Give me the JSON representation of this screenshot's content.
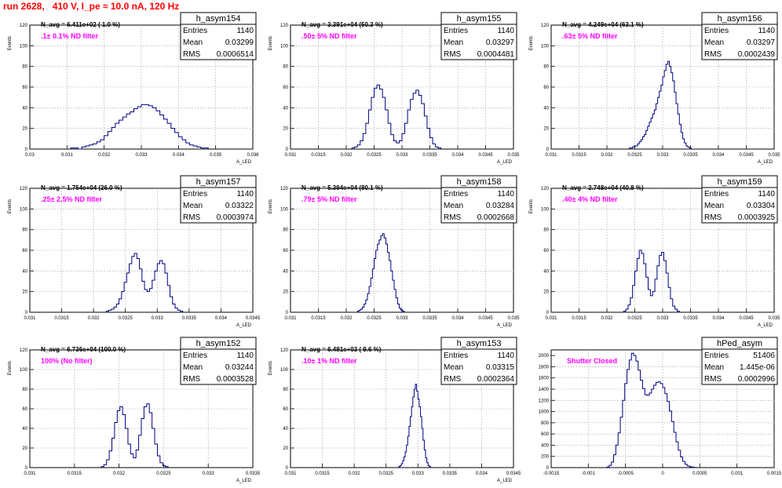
{
  "canvas_title": "run 2628,   410 V, I_pe ≈ 10.0 nA, 120 Hz",
  "colors": {
    "title": "#ff0000",
    "filter_text": "#ff00ff",
    "histogram_line": "#000080",
    "grid": "#9a9a9a"
  },
  "chart_data": [
    {
      "type": "bar",
      "name": "h_asym154",
      "ylabel": "Events",
      "xlabel": "A_LED",
      "nav_text": "N_avg = 6.411e+02 ( 1.0 %)",
      "filter_text": ".1± 0.1% ND filter",
      "stats": {
        "Entries": "1140",
        "Mean": "0.03299",
        "RMS": "0.0006514"
      },
      "xlim": [
        0.03,
        0.036
      ],
      "ylim": [
        0,
        120
      ],
      "grid": true,
      "xticks": [
        0.03,
        0.031,
        0.032,
        0.033,
        0.034,
        0.035,
        0.036
      ],
      "xtick_labels": [
        "0.03",
        "0.031",
        "0.032",
        "0.033",
        "0.034",
        "0.035",
        "0.036"
      ],
      "yticks": [
        0,
        20,
        40,
        60,
        80,
        100,
        120
      ],
      "ytick_labels": [
        "0",
        "20",
        "40",
        "60",
        "80",
        "100",
        "120"
      ],
      "bins": {
        "start": 0.0311,
        "width": 0.0001,
        "counts": [
          1,
          1,
          0,
          2,
          3,
          4,
          5,
          7,
          9,
          13,
          17,
          21,
          25,
          28,
          31,
          34,
          36,
          39,
          41,
          43,
          43,
          42,
          40,
          37,
          33,
          29,
          25,
          20,
          16,
          12,
          9,
          6,
          4,
          3,
          2,
          1,
          1
        ]
      }
    },
    {
      "type": "bar",
      "name": "h_asym155",
      "ylabel": "Events",
      "xlabel": "A_LED",
      "nav_text": "N_avg = 3.391e+04 (50.3 %)",
      "filter_text": ".50± 5% ND filter",
      "stats": {
        "Entries": "1140",
        "Mean": "0.03297",
        "RMS": "0.0004481"
      },
      "xlim": [
        0.031,
        0.035
      ],
      "ylim": [
        0,
        120
      ],
      "grid": true,
      "xticks": [
        0.031,
        0.0315,
        0.032,
        0.0325,
        0.033,
        0.0335,
        0.034,
        0.0345,
        0.035
      ],
      "xtick_labels": [
        "0.031",
        "0.0315",
        "0.032",
        "0.0325",
        "0.033",
        "0.0335",
        "0.034",
        "0.0345",
        "0.035"
      ],
      "yticks": [
        0,
        20,
        40,
        60,
        80,
        100,
        120
      ],
      "ytick_labels": [
        "0",
        "20",
        "40",
        "60",
        "80",
        "100",
        "120"
      ],
      "bins": {
        "start": 0.0321,
        "width": 5e-05,
        "counts": [
          1,
          2,
          4,
          8,
          15,
          25,
          38,
          50,
          59,
          62,
          58,
          50,
          38,
          25,
          14,
          8,
          6,
          8,
          15,
          25,
          38,
          48,
          54,
          57,
          52,
          44,
          32,
          20,
          11,
          5,
          2,
          1
        ]
      }
    },
    {
      "type": "bar",
      "name": "h_asym156",
      "ylabel": "Events",
      "xlabel": "A_LED",
      "nav_text": "N_avg = 4.249e+04 (63.1 %)",
      "filter_text": ".63± 5% ND filter",
      "stats": {
        "Entries": "1140",
        "Mean": "0.03297",
        "RMS": "0.0002439"
      },
      "xlim": [
        0.031,
        0.035
      ],
      "ylim": [
        0,
        120
      ],
      "grid": true,
      "xticks": [
        0.031,
        0.0315,
        0.032,
        0.0325,
        0.033,
        0.0335,
        0.034,
        0.0345,
        0.035
      ],
      "xtick_labels": [
        "0.031",
        "0.0315",
        "0.032",
        "0.0325",
        "0.033",
        "0.0335",
        "0.034",
        "0.0345",
        "0.035"
      ],
      "yticks": [
        0,
        20,
        40,
        60,
        80,
        100,
        120
      ],
      "ytick_labels": [
        "0",
        "20",
        "40",
        "60",
        "80",
        "100",
        "120"
      ],
      "bins": {
        "start": 0.0324,
        "width": 3e-05,
        "counts": [
          1,
          1,
          2,
          3,
          3,
          5,
          7,
          9,
          12,
          14,
          18,
          22,
          26,
          30,
          34,
          38,
          44,
          50,
          56,
          62,
          70,
          76,
          82,
          85,
          80,
          74,
          66,
          55,
          44,
          34,
          24,
          16,
          10,
          6,
          3,
          2,
          1
        ]
      }
    },
    {
      "type": "bar",
      "name": "h_asym157",
      "ylabel": "Events",
      "xlabel": "A_LED",
      "nav_text": "N_avg = 1.754e+04 (26.0 %)",
      "filter_text": ".25± 2.5% ND filter",
      "stats": {
        "Entries": "1140",
        "Mean": "0.03322",
        "RMS": "0.0003974"
      },
      "xlim": [
        0.031,
        0.0345
      ],
      "ylim": [
        0,
        120
      ],
      "grid": true,
      "xticks": [
        0.031,
        0.0315,
        0.032,
        0.0325,
        0.033,
        0.0335,
        0.034,
        0.0345
      ],
      "xtick_labels": [
        "0.031",
        "0.0315",
        "0.032",
        "0.0325",
        "0.033",
        "0.0335",
        "0.034",
        "0.0345"
      ],
      "yticks": [
        0,
        20,
        40,
        60,
        80,
        100,
        120
      ],
      "ytick_labels": [
        "0",
        "20",
        "40",
        "60",
        "80",
        "100",
        "120"
      ],
      "bins": {
        "start": 0.0322,
        "width": 4e-05,
        "counts": [
          1,
          2,
          3,
          5,
          8,
          13,
          20,
          29,
          38,
          47,
          54,
          57,
          52,
          42,
          30,
          22,
          20,
          23,
          31,
          40,
          47,
          50,
          47,
          38,
          26,
          15,
          8,
          4,
          2,
          1
        ]
      }
    },
    {
      "type": "bar",
      "name": "h_asym158",
      "ylabel": "Events",
      "xlabel": "A_LED",
      "nav_text": "N_avg = 5.394e+04 (80.1 %)",
      "filter_text": ".79± 5% ND filter",
      "stats": {
        "Entries": "1140",
        "Mean": "0.03284",
        "RMS": "0.0002668"
      },
      "xlim": [
        0.031,
        0.035
      ],
      "ylim": [
        0,
        120
      ],
      "grid": true,
      "xticks": [
        0.031,
        0.0315,
        0.032,
        0.0325,
        0.033,
        0.0335,
        0.034,
        0.0345,
        0.035
      ],
      "xtick_labels": [
        "0.031",
        "0.0315",
        "0.032",
        "0.0325",
        "0.033",
        "0.0335",
        "0.034",
        "0.0345",
        "0.035"
      ],
      "yticks": [
        0,
        20,
        40,
        60,
        80,
        100,
        120
      ],
      "ytick_labels": [
        "0",
        "20",
        "40",
        "60",
        "80",
        "100",
        "120"
      ],
      "bins": {
        "start": 0.0322,
        "width": 3e-05,
        "counts": [
          1,
          2,
          3,
          5,
          8,
          12,
          18,
          25,
          33,
          42,
          52,
          60,
          66,
          70,
          74,
          76,
          72,
          66,
          58,
          50,
          40,
          31,
          22,
          14,
          8,
          4,
          2,
          1
        ]
      }
    },
    {
      "type": "bar",
      "name": "h_asym159",
      "ylabel": "Events",
      "xlabel": "A_LED",
      "nav_text": "N_avg = 2.748e+04 (40.8 %)",
      "filter_text": ".40± 4% ND filter",
      "stats": {
        "Entries": "1140",
        "Mean": "0.03304",
        "RMS": "0.0003925"
      },
      "xlim": [
        0.031,
        0.035
      ],
      "ylim": [
        0,
        120
      ],
      "grid": true,
      "xticks": [
        0.031,
        0.0315,
        0.032,
        0.0325,
        0.033,
        0.0335,
        0.034,
        0.0345,
        0.035
      ],
      "xtick_labels": [
        "0.031",
        "0.0315",
        "0.032",
        "0.0325",
        "0.033",
        "0.0335",
        "0.034",
        "0.0345",
        "0.035"
      ],
      "yticks": [
        0,
        20,
        40,
        60,
        80,
        100,
        120
      ],
      "ytick_labels": [
        "0",
        "20",
        "40",
        "60",
        "80",
        "100",
        "120"
      ],
      "bins": {
        "start": 0.0323,
        "width": 4e-05,
        "counts": [
          1,
          3,
          7,
          14,
          26,
          40,
          52,
          60,
          57,
          47,
          34,
          22,
          16,
          20,
          32,
          45,
          55,
          58,
          50,
          38,
          24,
          13,
          6,
          3,
          1
        ]
      }
    },
    {
      "type": "bar",
      "name": "h_asym152",
      "ylabel": "Events",
      "xlabel": "A_LED",
      "nav_text": "N_avg = 6.736e+04 (100.0 %)",
      "filter_text": "100% (No filter)",
      "stats": {
        "Entries": "1140",
        "Mean": "0.03244",
        "RMS": "0.0003528"
      },
      "xlim": [
        0.031,
        0.0335
      ],
      "ylim": [
        0,
        120
      ],
      "grid": true,
      "xticks": [
        0.031,
        0.0315,
        0.032,
        0.0325,
        0.033,
        0.0335
      ],
      "xtick_labels": [
        "0.031",
        "0.0315",
        "0.032",
        "0.0325",
        "0.033",
        "0.0335"
      ],
      "yticks": [
        0,
        20,
        40,
        60,
        80,
        100,
        120
      ],
      "ytick_labels": [
        "0",
        "20",
        "40",
        "60",
        "80",
        "100",
        "120"
      ],
      "bins": {
        "start": 0.0318,
        "width": 3e-05,
        "counts": [
          1,
          3,
          8,
          17,
          30,
          46,
          58,
          62,
          54,
          40,
          24,
          14,
          10,
          18,
          33,
          50,
          62,
          65,
          56,
          40,
          24,
          12,
          5,
          2,
          1
        ]
      }
    },
    {
      "type": "bar",
      "name": "h_asym153",
      "ylabel": "Events",
      "xlabel": "A_LED",
      "nav_text": "N_avg = 6.481e+03 ( 9.6 %)",
      "filter_text": ".10± 1% ND filter",
      "stats": {
        "Entries": "1140",
        "Mean": "0.03315",
        "RMS": "0.0002364"
      },
      "xlim": [
        0.031,
        0.0345
      ],
      "ylim": [
        0,
        120
      ],
      "grid": true,
      "xticks": [
        0.031,
        0.0315,
        0.032,
        0.0325,
        0.033,
        0.0335,
        0.034,
        0.0345
      ],
      "xtick_labels": [
        "0.031",
        "0.0315",
        "0.032",
        "0.0325",
        "0.033",
        "0.0335",
        "0.034",
        "0.0345"
      ],
      "yticks": [
        0,
        20,
        40,
        60,
        80,
        100,
        120
      ],
      "ytick_labels": [
        "0",
        "20",
        "40",
        "60",
        "80",
        "100",
        "120"
      ],
      "bins": {
        "start": 0.0327,
        "width": 2e-05,
        "counts": [
          1,
          2,
          4,
          7,
          11,
          16,
          23,
          32,
          42,
          52,
          62,
          72,
          80,
          85,
          78,
          70,
          62,
          52,
          40,
          28,
          18,
          10,
          5,
          2,
          1
        ]
      }
    },
    {
      "type": "bar",
      "name": "hPed_asym",
      "ylabel": "",
      "xlabel": "",
      "nav_text": "",
      "filter_text": "Shutter Closed",
      "stats": {
        "Entries": "51406",
        "Mean": "1.445e-06",
        "RMS": "0.0002996"
      },
      "xlim": [
        -0.0015,
        0.0015
      ],
      "ylim": [
        0,
        2100
      ],
      "grid": true,
      "xticks": [
        -0.0015,
        -0.001,
        -0.0005,
        0,
        0.0005,
        0.001,
        0.0015
      ],
      "xtick_labels": [
        "-0.0015",
        "-0.001",
        "-0.0005",
        "0",
        "0.0005",
        "0.001",
        "0.0015"
      ],
      "yticks": [
        0,
        200,
        400,
        600,
        800,
        1000,
        1200,
        1400,
        1600,
        1800,
        2000
      ],
      "ytick_labels": [
        "0",
        "200",
        "400",
        "600",
        "800",
        "1000",
        "1200",
        "1400",
        "1600",
        "1800",
        "2000"
      ],
      "bins": {
        "start": -0.00075,
        "width": 3e-05,
        "counts": [
          10,
          40,
          100,
          230,
          400,
          620,
          900,
          1200,
          1500,
          1750,
          1920,
          2040,
          2000,
          1900,
          1740,
          1560,
          1410,
          1300,
          1290,
          1330,
          1400,
          1470,
          1520,
          1530,
          1500,
          1430,
          1320,
          1180,
          1010,
          820,
          630,
          460,
          310,
          190,
          110,
          60,
          30,
          15,
          8,
          3
        ]
      }
    }
  ]
}
